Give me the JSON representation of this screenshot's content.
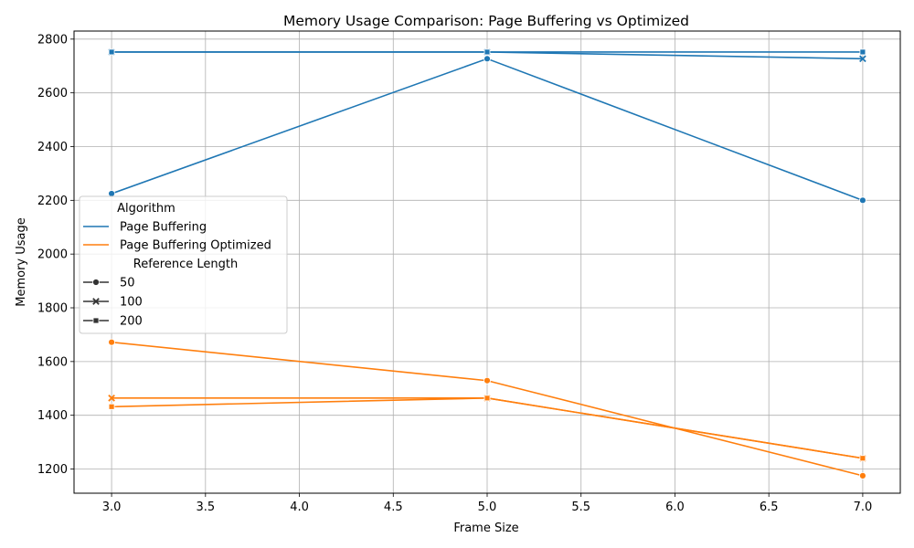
{
  "chart_data": {
    "type": "line",
    "title": "Memory Usage Comparison: Page Buffering vs Optimized",
    "xlabel": "Frame Size",
    "ylabel": "Memory Usage",
    "xlim": [
      2.8,
      7.2
    ],
    "ylim": [
      1110,
      2830
    ],
    "x_ticks": [
      "3.0",
      "3.5",
      "4.0",
      "4.5",
      "5.0",
      "5.5",
      "6.0",
      "6.5",
      "7.0"
    ],
    "y_ticks": [
      "1200",
      "1400",
      "1600",
      "1800",
      "2000",
      "2200",
      "2400",
      "2600",
      "2800"
    ],
    "x_tick_values": [
      3.0,
      3.5,
      4.0,
      4.5,
      5.0,
      5.5,
      6.0,
      6.5,
      7.0
    ],
    "y_tick_values": [
      1200,
      1400,
      1600,
      1800,
      2000,
      2200,
      2400,
      2600,
      2800
    ],
    "grid": true,
    "legend_position": "center-left",
    "legend": {
      "hue_title": "Algorithm",
      "hue_entries": [
        {
          "label": "Page Buffering",
          "color": "#1f77b4"
        },
        {
          "label": "Page Buffering Optimized",
          "color": "#ff7f0e"
        }
      ],
      "style_title": "Reference Length",
      "style_entries": [
        {
          "label": "50",
          "marker": "circle"
        },
        {
          "label": "100",
          "marker": "x"
        },
        {
          "label": "200",
          "marker": "square"
        }
      ]
    },
    "series": [
      {
        "algorithm": "Page Buffering",
        "reference_length": "50",
        "color": "#1f77b4",
        "marker": "circle",
        "x": [
          3,
          5,
          7
        ],
        "y": [
          2225,
          2727,
          2200
        ]
      },
      {
        "algorithm": "Page Buffering",
        "reference_length": "100",
        "color": "#1f77b4",
        "marker": "x",
        "x": [
          3,
          5,
          7
        ],
        "y": [
          2752,
          2752,
          2727
        ]
      },
      {
        "algorithm": "Page Buffering",
        "reference_length": "200",
        "color": "#1f77b4",
        "marker": "square",
        "x": [
          3,
          5,
          7
        ],
        "y": [
          2752,
          2752,
          2752
        ]
      },
      {
        "algorithm": "Page Buffering Optimized",
        "reference_length": "50",
        "color": "#ff7f0e",
        "marker": "circle",
        "x": [
          3,
          5,
          7
        ],
        "y": [
          1672,
          1529,
          1175
        ]
      },
      {
        "algorithm": "Page Buffering Optimized",
        "reference_length": "100",
        "color": "#ff7f0e",
        "marker": "x",
        "x": [
          3,
          5,
          7
        ],
        "y": [
          1464,
          1464,
          1240
        ]
      },
      {
        "algorithm": "Page Buffering Optimized",
        "reference_length": "200",
        "color": "#ff7f0e",
        "marker": "square",
        "x": [
          3,
          5,
          7
        ],
        "y": [
          1432,
          1464,
          1240
        ]
      }
    ]
  }
}
